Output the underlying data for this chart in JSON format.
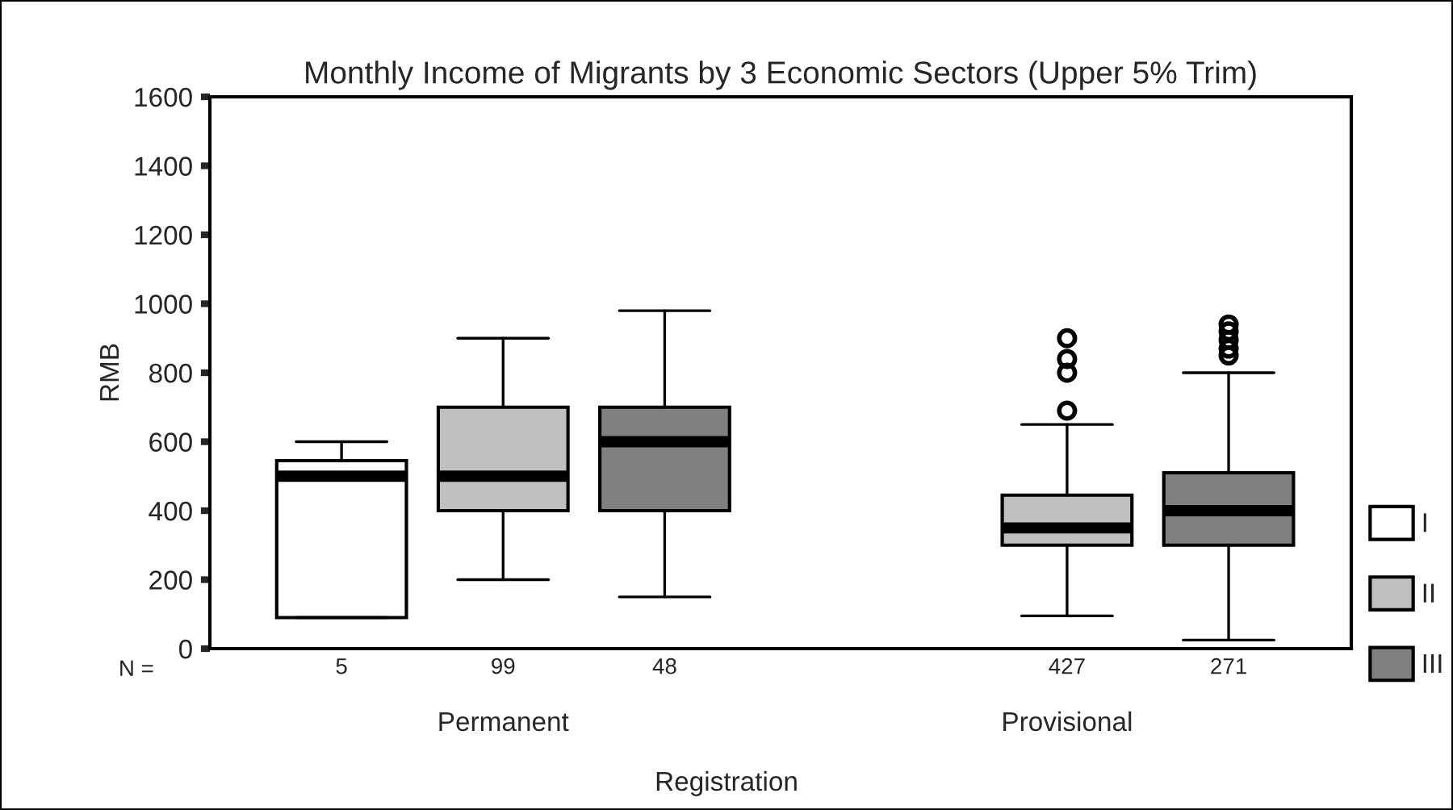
{
  "chart_data": {
    "type": "box",
    "title": "Monthly Income of Migrants by 3 Economic Sectors (Upper 5% Trim)",
    "xlabel": "Registration",
    "ylabel": "RMB",
    "categories": [
      "Permanent",
      "Provisional"
    ],
    "series": [
      {
        "name": "I",
        "color": "#ffffff",
        "boxes": [
          {
            "low": 90,
            "q1": 90,
            "median": 500,
            "q3": 545,
            "high": 600
          },
          null
        ]
      },
      {
        "name": "II",
        "color": "#c0c0c0",
        "boxes": [
          {
            "low": 200,
            "q1": 400,
            "median": 500,
            "q3": 700,
            "high": 900
          },
          {
            "low": 95,
            "q1": 300,
            "median": 350,
            "q3": 445,
            "high": 650,
            "outliers": [
              690,
              800,
              840,
              900
            ]
          }
        ]
      },
      {
        "name": "III",
        "color": "#808080",
        "boxes": [
          {
            "low": 150,
            "q1": 400,
            "median": 600,
            "q3": 700,
            "high": 980
          },
          {
            "low": 25,
            "q1": 300,
            "median": 400,
            "q3": 510,
            "high": 800,
            "outliers": [
              850,
              870,
              895,
              920,
              940
            ]
          }
        ]
      }
    ],
    "ylim": [
      0,
      1600
    ],
    "yticks": [
      0,
      200,
      400,
      600,
      800,
      1000,
      1200,
      1400,
      1600
    ],
    "legend": "right",
    "grid": false,
    "annotations": [
      "N =",
      "5",
      "99",
      "48",
      "427",
      "271"
    ]
  }
}
